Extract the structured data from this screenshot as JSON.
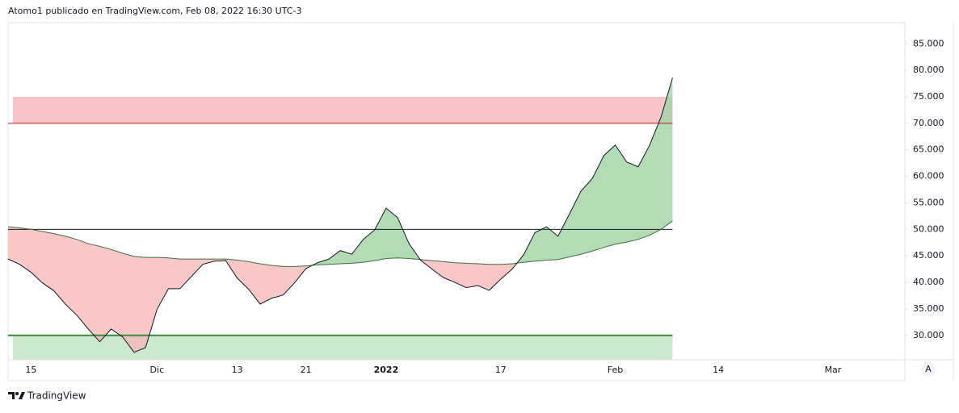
{
  "header": {
    "text": "Atomo1 publicado en TradingView.com, Feb 08, 2022 16:30 UTC-3"
  },
  "footer": {
    "brand": "TradingView"
  },
  "scale_button": "A",
  "chart_data": {
    "type": "line",
    "categories": [
      null,
      null,
      "15",
      null,
      null,
      null,
      null,
      null,
      null,
      null,
      null,
      null,
      null,
      "Dic",
      null,
      null,
      null,
      null,
      null,
      null,
      "13",
      null,
      null,
      null,
      null,
      null,
      "21",
      null,
      null,
      null,
      null,
      null,
      null,
      "2022",
      null,
      null,
      null,
      null,
      null,
      null,
      null,
      null,
      null,
      "17",
      null,
      null,
      null,
      null,
      null,
      null,
      null,
      null,
      null,
      "Feb",
      null,
      null,
      null,
      null,
      null,
      null,
      null,
      null,
      "14",
      null,
      null,
      null,
      null,
      null,
      null,
      null,
      null,
      null,
      "Mar",
      null,
      null,
      null,
      null,
      null
    ],
    "series": [
      {
        "color": "#131722",
        "values": [
          44.4,
          43.4,
          41.9,
          39.9,
          38.4,
          35.9,
          33.8,
          31.2,
          28.8,
          31.2,
          29.7,
          26.8,
          27.7,
          34.9,
          38.8,
          38.8,
          41.1,
          43.4,
          44.0,
          44.1,
          40.8,
          38.7,
          35.9,
          37.0,
          37.6,
          39.9,
          42.6,
          43.7,
          44.4,
          46.0,
          45.3,
          48.1,
          49.9,
          54.0,
          52.2,
          47.3,
          44.2,
          42.5,
          40.9,
          40.0,
          39.0,
          39.4,
          38.5,
          40.6,
          42.5,
          45.2,
          49.4,
          50.5,
          48.7,
          52.9,
          57.2,
          59.6,
          63.9,
          65.9,
          62.7,
          61.8,
          65.9,
          71.2,
          78.6,
          null,
          null,
          null,
          null,
          null,
          null,
          null,
          null,
          null,
          null,
          null,
          null,
          null,
          null,
          null,
          null,
          null,
          null,
          null
        ]
      },
      {
        "color": "#3b6e3e",
        "values": [
          50.5,
          50.3,
          50.0,
          49.6,
          49.2,
          48.7,
          48.1,
          47.3,
          46.8,
          46.2,
          45.5,
          44.9,
          44.7,
          44.7,
          44.6,
          44.4,
          44.4,
          44.4,
          44.4,
          44.4,
          44.2,
          43.9,
          43.5,
          43.2,
          43.0,
          43.0,
          43.1,
          43.3,
          43.4,
          43.5,
          43.6,
          43.8,
          44.1,
          44.5,
          44.6,
          44.5,
          44.3,
          44.1,
          43.9,
          43.7,
          43.6,
          43.5,
          43.4,
          43.4,
          43.5,
          43.8,
          44.0,
          44.2,
          44.3,
          44.8,
          45.3,
          45.9,
          46.6,
          47.2,
          47.6,
          48.1,
          48.9,
          50.0,
          51.6,
          null,
          null,
          null,
          null,
          null,
          null,
          null,
          null,
          null,
          null,
          null,
          null,
          null,
          null,
          null,
          null,
          null,
          null,
          null
        ]
      }
    ],
    "fill_above": "#a5d6a7",
    "fill_below": "#f8b4b4",
    "ylim": [
      25.4,
      89
    ],
    "yticks": [
      {
        "value": 30,
        "label": "30.000"
      },
      {
        "value": 35,
        "label": "35.000"
      },
      {
        "value": 40,
        "label": "40.000"
      },
      {
        "value": 45,
        "label": "45.000"
      },
      {
        "value": 50,
        "label": "50.000"
      },
      {
        "value": 55,
        "label": "55.000"
      },
      {
        "value": 60,
        "label": "60.000"
      },
      {
        "value": 65,
        "label": "65.000"
      },
      {
        "value": 70,
        "label": "70.000"
      },
      {
        "value": 75,
        "label": "75.000"
      },
      {
        "value": 80,
        "label": "80.000"
      },
      {
        "value": 85,
        "label": "85.000"
      }
    ],
    "hlines": [
      {
        "value": 70,
        "color": "#b71c1c"
      },
      {
        "value": 50,
        "color": "#131722"
      },
      {
        "value": 30,
        "color": "#388e3c"
      }
    ],
    "bands": [
      {
        "from": 70,
        "to": 75,
        "color": "#f7c4c8"
      },
      {
        "from": 30,
        "to": 25.4,
        "color": "#cce8ce"
      }
    ],
    "grid": false
  }
}
